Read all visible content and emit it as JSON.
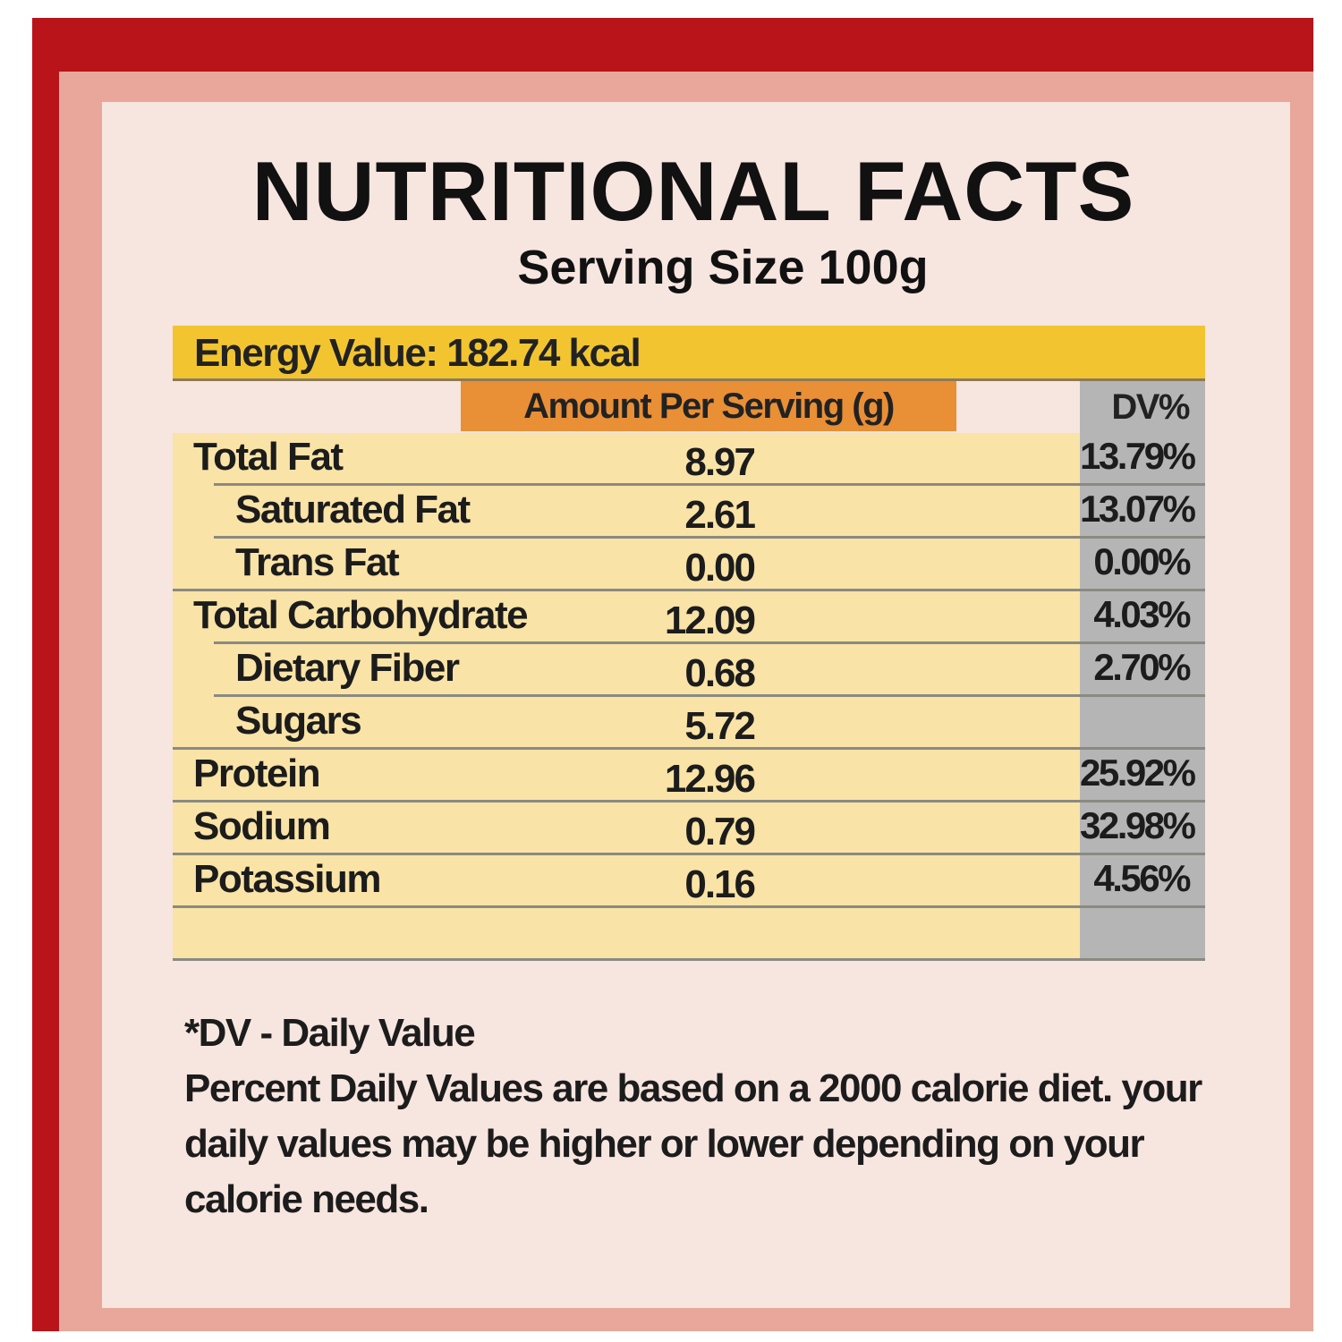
{
  "label": {
    "title": "NUTRITIONAL FACTS",
    "serving_size": "Serving Size 100g",
    "energy": "Energy Value: 182.74 kcal",
    "amount_header": "Amount Per Serving (g)",
    "dv_header": "DV%"
  },
  "rows": [
    {
      "name": "Total Fat",
      "amount": "8.97",
      "dv": "13.79%",
      "indent": false
    },
    {
      "name": "Saturated Fat",
      "amount": "2.61",
      "dv": "13.07%",
      "indent": true
    },
    {
      "name": "Trans Fat",
      "amount": "0.00",
      "dv": "0.00%",
      "indent": true
    },
    {
      "name": "Total Carbohydrate",
      "amount": "12.09",
      "dv": "4.03%",
      "indent": false
    },
    {
      "name": "Dietary Fiber",
      "amount": "0.68",
      "dv": "2.70%",
      "indent": true
    },
    {
      "name": "Sugars",
      "amount": "5.72",
      "dv": "",
      "indent": true
    },
    {
      "name": "Protein",
      "amount": "12.96",
      "dv": "25.92%",
      "indent": false
    },
    {
      "name": "Sodium",
      "amount": "0.79",
      "dv": "32.98%",
      "indent": false
    },
    {
      "name": "Potassium",
      "amount": "0.16",
      "dv": "4.56%",
      "indent": false
    }
  ],
  "footnote": {
    "heading": "*DV - Daily Value",
    "lines": [
      "Percent Daily Values are based on a 2000 calorie diet. your",
      "daily  values may be higher or lower depending on your",
      "calorie needs."
    ]
  },
  "colors": {
    "frame_red": "#b8141a",
    "frame_pink": "#e8a79a",
    "panel": "#f7e5df",
    "energy_yellow": "#f2c530",
    "amount_orange": "#e98f35",
    "row_cream": "#f9e3a6",
    "dv_grey": "#b5b5b5"
  }
}
